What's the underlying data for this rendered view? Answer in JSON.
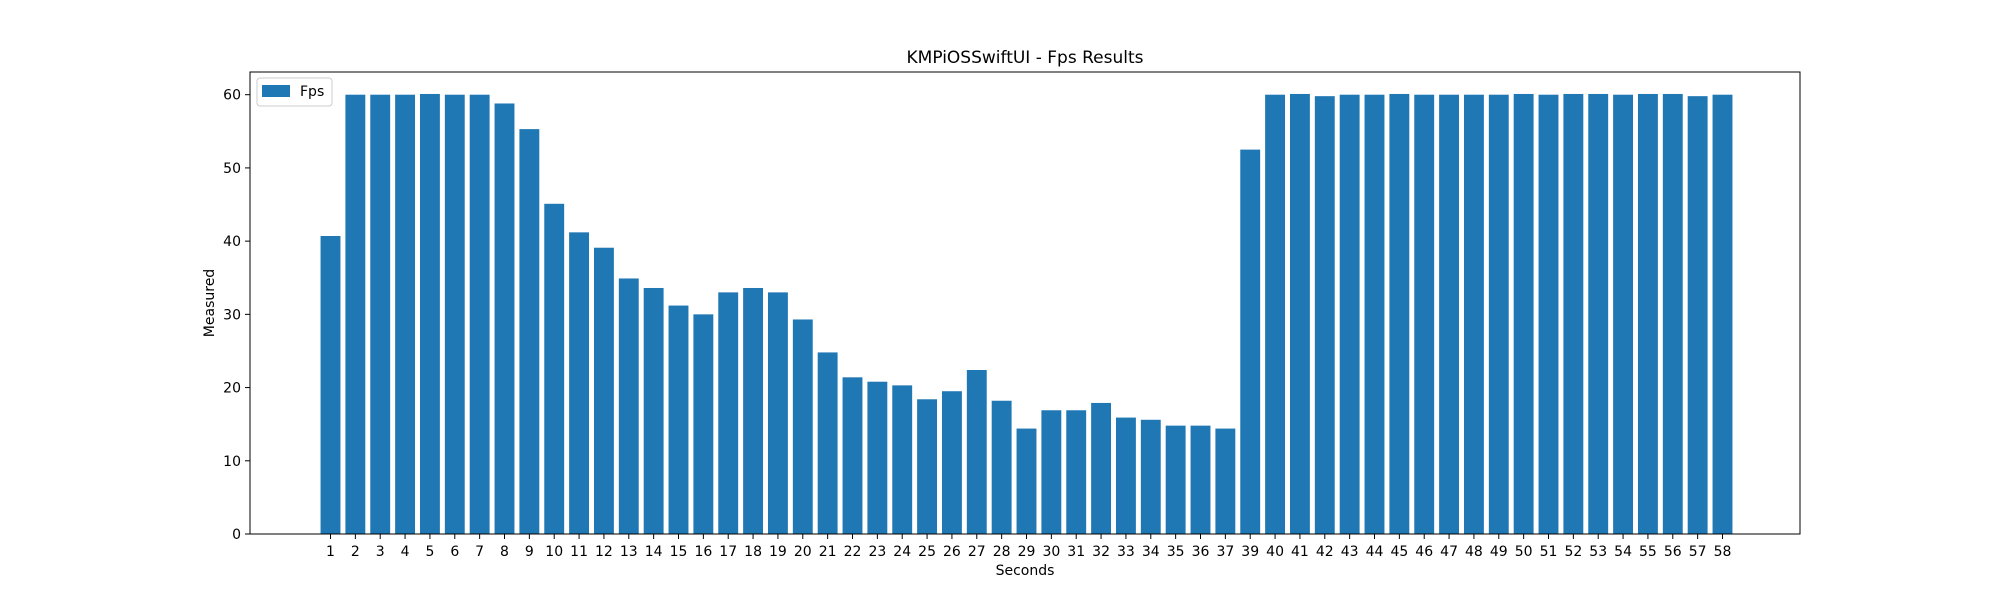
{
  "chart_data": {
    "type": "bar",
    "title": "KMPiOSSwiftUI - Fps Results",
    "xlabel": "Seconds",
    "ylabel": "Measured",
    "categories": [
      "1",
      "2",
      "3",
      "4",
      "5",
      "6",
      "7",
      "8",
      "9",
      "10",
      "11",
      "12",
      "13",
      "14",
      "15",
      "16",
      "17",
      "18",
      "19",
      "20",
      "21",
      "22",
      "23",
      "24",
      "25",
      "26",
      "27",
      "28",
      "29",
      "30",
      "31",
      "32",
      "33",
      "34",
      "35",
      "36",
      "37",
      "39",
      "40",
      "41",
      "42",
      "43",
      "44",
      "45",
      "46",
      "47",
      "48",
      "49",
      "50",
      "51",
      "52",
      "53",
      "54",
      "55",
      "56",
      "57",
      "58"
    ],
    "series": [
      {
        "name": "Fps",
        "color": "#1f77b4",
        "values": [
          40.7,
          60.0,
          60.0,
          60.0,
          60.1,
          60.0,
          60.0,
          58.8,
          55.3,
          45.1,
          41.2,
          39.1,
          34.9,
          33.6,
          31.2,
          30.0,
          33.0,
          33.6,
          33.0,
          29.3,
          24.8,
          21.4,
          20.8,
          20.3,
          18.4,
          19.5,
          22.4,
          18.2,
          14.4,
          16.9,
          16.9,
          17.9,
          15.9,
          15.6,
          14.8,
          14.8,
          14.4,
          52.5,
          60.0,
          60.1,
          59.8,
          60.0,
          60.0,
          60.1,
          60.0,
          60.0,
          60.0,
          60.0,
          60.1,
          60.0,
          60.1,
          60.1,
          60.0,
          60.1,
          60.1,
          59.8,
          60.0
        ]
      }
    ],
    "ylim": [
      0,
      63.1
    ],
    "yticks": [
      0,
      10,
      20,
      30,
      40,
      50,
      60
    ],
    "grid": false,
    "legend_position": "top-left"
  }
}
